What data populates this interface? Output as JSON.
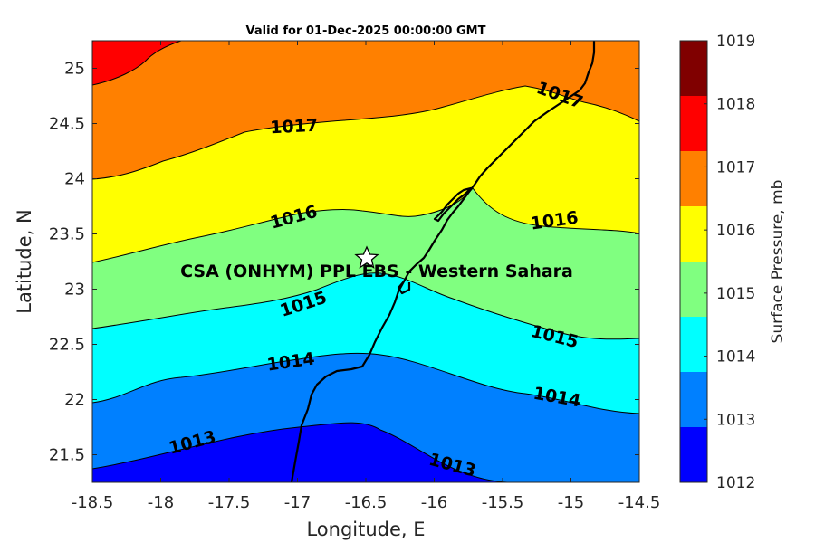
{
  "title": "Valid for 01-Dec-2025 00:00:00 GMT",
  "x_axis": {
    "label": "Longitude, E",
    "range": [
      -18.5,
      -14.5
    ],
    "ticks": [
      "-18.5",
      "-18",
      "-17.5",
      "-17",
      "-16.5",
      "-16",
      "-15.5",
      "-15",
      "-14.5"
    ]
  },
  "y_axis": {
    "label": "Latitude, N",
    "range": [
      21.25,
      25.25
    ],
    "ticks": [
      "21.5",
      "22",
      "22.5",
      "23",
      "23.5",
      "24",
      "24.5",
      "25"
    ]
  },
  "colorbar": {
    "label": "Surface Pressure, mb",
    "ticks": [
      "1012",
      "1013",
      "1014",
      "1015",
      "1016",
      "1017",
      "1018",
      "1019"
    ],
    "colors": [
      "#0000ff",
      "#0080ff",
      "#00ffff",
      "#80ff80",
      "#ffff00",
      "#ff8000",
      "#ff0000",
      "#800000"
    ]
  },
  "contour_labels": [
    "1013",
    "1013",
    "1014",
    "1014",
    "1015",
    "1015",
    "1016",
    "1016",
    "1017",
    "1017"
  ],
  "station": {
    "label": "CSA (ONHYM) PPL EBS  - Western Sahara",
    "lon": -16.5,
    "lat": 23.3,
    "marker": "star-icon"
  },
  "chart_data": {
    "type": "heatmap",
    "subtype": "filled-contour-map",
    "variable": "Surface Pressure",
    "units": "mb",
    "levels": [
      1012,
      1013,
      1014,
      1015,
      1016,
      1017,
      1018,
      1019
    ],
    "xlim": [
      -18.5,
      -14.5
    ],
    "ylim": [
      21.25,
      25.25
    ],
    "contours": [
      {
        "level": 1013,
        "points": [
          [
            -18.5,
            21.37
          ],
          [
            -18.0,
            21.46
          ],
          [
            -17.5,
            21.65
          ],
          [
            -17.0,
            21.72
          ],
          [
            -16.8,
            21.78
          ],
          [
            -16.6,
            21.8
          ],
          [
            -16.3,
            21.68
          ],
          [
            -16.0,
            21.43
          ],
          [
            -15.75,
            21.3
          ],
          [
            -15.6,
            21.25
          ]
        ]
      },
      {
        "level": 1014,
        "points": [
          [
            -18.5,
            21.97
          ],
          [
            -18.25,
            22.03
          ],
          [
            -18.0,
            22.1
          ],
          [
            -17.7,
            22.18
          ],
          [
            -17.4,
            22.26
          ],
          [
            -17.0,
            22.33
          ],
          [
            -16.6,
            22.42
          ],
          [
            -16.4,
            22.4
          ],
          [
            -16.0,
            22.23
          ],
          [
            -15.6,
            22.05
          ],
          [
            -15.2,
            21.92
          ],
          [
            -14.9,
            21.85
          ],
          [
            -14.5,
            21.82
          ]
        ]
      },
      {
        "level": 1015,
        "points": [
          [
            -18.5,
            22.65
          ],
          [
            -18.2,
            22.7
          ],
          [
            -17.9,
            22.75
          ],
          [
            -17.6,
            22.8
          ],
          [
            -17.3,
            22.86
          ],
          [
            -17.0,
            22.91
          ],
          [
            -16.8,
            23.0
          ],
          [
            -16.55,
            23.13
          ],
          [
            -16.4,
            23.17
          ],
          [
            -16.2,
            23.12
          ],
          [
            -16.0,
            22.97
          ],
          [
            -15.7,
            22.8
          ],
          [
            -15.4,
            22.64
          ],
          [
            -15.0,
            22.5
          ],
          [
            -14.7,
            22.46
          ],
          [
            -14.5,
            22.46
          ]
        ]
      },
      {
        "level": 1016,
        "points": [
          [
            -18.5,
            23.25
          ],
          [
            -18.2,
            23.33
          ],
          [
            -17.9,
            23.4
          ],
          [
            -17.5,
            23.5
          ],
          [
            -17.2,
            23.6
          ],
          [
            -17.0,
            23.68
          ],
          [
            -16.8,
            23.73
          ],
          [
            -16.6,
            23.72
          ],
          [
            -16.4,
            23.68
          ],
          [
            -16.2,
            23.64
          ],
          [
            -16.0,
            23.69
          ],
          [
            -15.85,
            23.74
          ],
          [
            -15.65,
            23.56
          ],
          [
            -15.3,
            23.53
          ],
          [
            -15.0,
            23.52
          ],
          [
            -14.7,
            23.49
          ],
          [
            -14.5,
            23.46
          ]
        ]
      },
      {
        "level": 1017,
        "points": [
          [
            -18.5,
            24.0
          ],
          [
            -18.25,
            24.05
          ],
          [
            -18.0,
            24.15
          ],
          [
            -17.6,
            24.2
          ],
          [
            -17.3,
            24.33
          ],
          [
            -17.0,
            24.4
          ],
          [
            -16.7,
            24.42
          ],
          [
            -16.4,
            24.45
          ],
          [
            -16.2,
            24.48
          ],
          [
            -16.0,
            24.55
          ],
          [
            -15.75,
            24.7
          ],
          [
            -15.55,
            24.82
          ],
          [
            -15.3,
            24.93
          ],
          [
            -15.05,
            24.85
          ],
          [
            -14.85,
            24.66
          ],
          [
            -14.5,
            24.5
          ]
        ]
      },
      {
        "level": 1018,
        "points": [
          [
            -18.5,
            24.85
          ],
          [
            -18.25,
            24.95
          ],
          [
            -18.1,
            25.1
          ],
          [
            -18.0,
            25.25
          ]
        ]
      }
    ],
    "coastline": "yes",
    "station_marker": {
      "lon": -16.5,
      "lat": 23.3
    }
  }
}
